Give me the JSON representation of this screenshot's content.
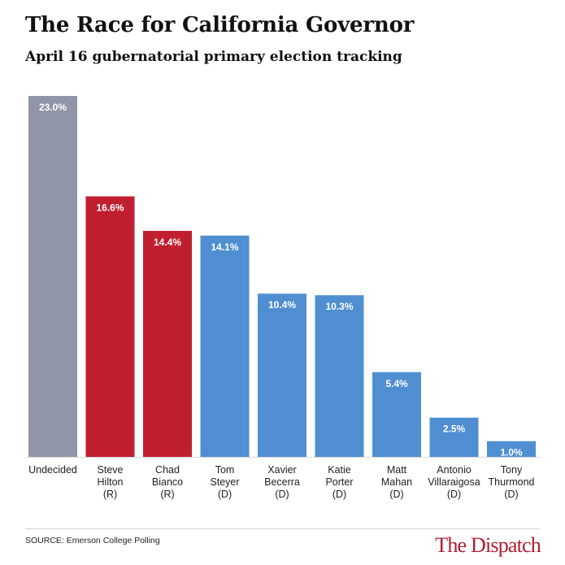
{
  "header": {
    "title": "The Race for California Governor",
    "subtitle": "April 16 gubernatorial primary election tracking"
  },
  "footer": {
    "source": "SOURCE: Emerson College Polling",
    "brand": "The Dispatch"
  },
  "colors": {
    "undecided": "#9096a8",
    "republican": "#bf1f2f",
    "democrat": "#4f8fd1",
    "label_text": "#ffffff",
    "axis": "#d8d8d8"
  },
  "chart_data": {
    "type": "bar",
    "title": "The Race for California Governor",
    "subtitle": "April 16 gubernatorial primary election tracking",
    "xlabel": "",
    "ylabel": "",
    "ylim": [
      0,
      23
    ],
    "grid": false,
    "legend": "none",
    "categories": [
      "Undecided",
      "Steve Hilton (R)",
      "Chad Bianco (R)",
      "Tom Steyer (D)",
      "Xavier Becerra (D)",
      "Katie Porter (D)",
      "Matt Mahan (D)",
      "Antonio Villaraigosa (D)",
      "Tony Thurmond (D)"
    ],
    "category_lines": [
      [
        "Undecided"
      ],
      [
        "Steve",
        "Hilton",
        "(R)"
      ],
      [
        "Chad",
        "Bianco",
        "(R)"
      ],
      [
        "Tom",
        "Steyer",
        "(D)"
      ],
      [
        "Xavier",
        "Becerra",
        "(D)"
      ],
      [
        "Katie",
        "Porter",
        "(D)"
      ],
      [
        "Matt",
        "Mahan",
        "(D)"
      ],
      [
        "Antonio",
        "Villaraigosa",
        "(D)"
      ],
      [
        "Tony",
        "Thurmond",
        "(D)"
      ]
    ],
    "values": [
      23.0,
      16.6,
      14.4,
      14.1,
      10.4,
      10.3,
      5.4,
      2.5,
      1.0
    ],
    "value_labels": [
      "23.0%",
      "16.6%",
      "14.4%",
      "14.1%",
      "10.4%",
      "10.3%",
      "5.4%",
      "2.5%",
      "1.0%"
    ],
    "bar_color_keys": [
      "undecided",
      "republican",
      "republican",
      "democrat",
      "democrat",
      "democrat",
      "democrat",
      "democrat",
      "democrat"
    ]
  }
}
